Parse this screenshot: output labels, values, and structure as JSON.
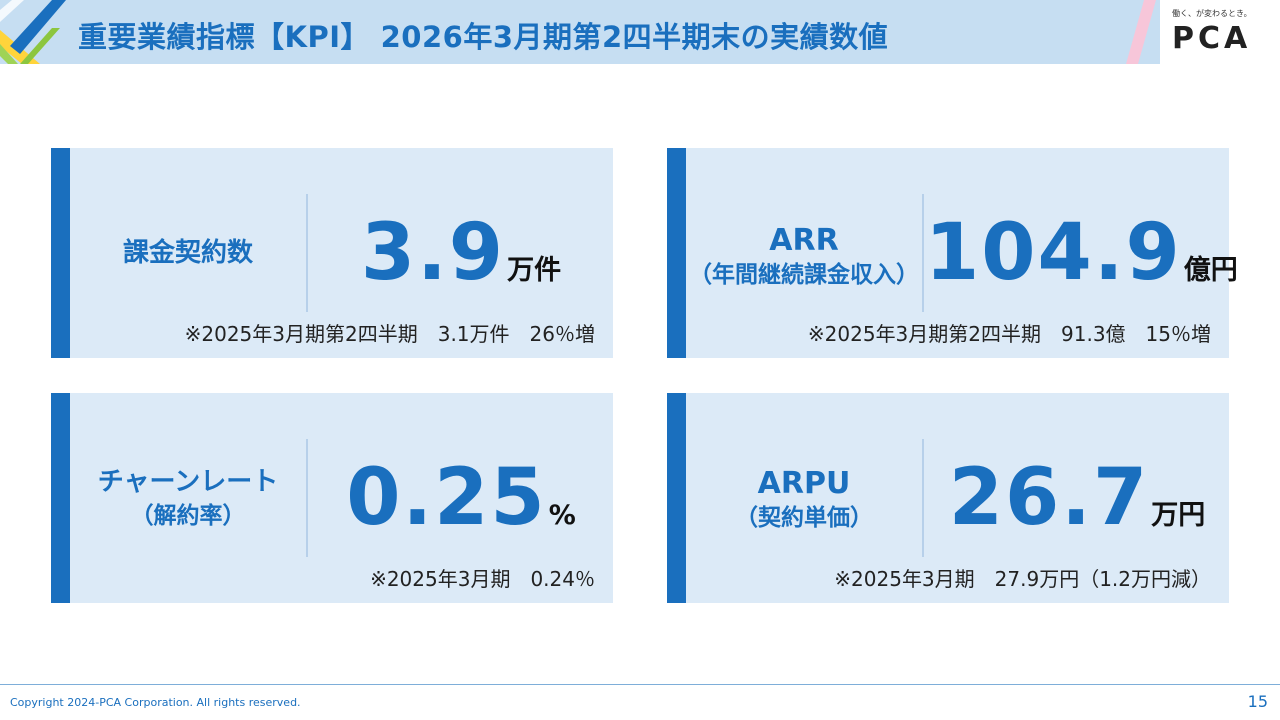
{
  "header": {
    "title": "重要業績指標【KPI】 2026年3月期第2四半期末の実績数値",
    "logo_tagline": "働く、が変わるとき。",
    "logo": "PCA"
  },
  "cards": [
    {
      "label": "課金契約数",
      "label_sub": "",
      "value": "3.9",
      "unit": "万件",
      "note": "※2025年3月期第2四半期　3.1万件　26％増"
    },
    {
      "label": "ARR",
      "label_sub": "（年間継続課金収入）",
      "value": "104.9",
      "unit": "億円",
      "note": "※2025年3月期第2四半期　91.3億　15％増"
    },
    {
      "label": "チャーンレート",
      "label_sub": "（解約率）",
      "value": "0.25",
      "unit": "%",
      "note": "※2025年3月期　0.24％"
    },
    {
      "label": "ARPU",
      "label_sub": "（契約単価）",
      "value": "26.7",
      "unit": "万円",
      "note": "※2025年3月期　27.9万円（1.2万円減）"
    }
  ],
  "footer": {
    "copyright": "Copyright 2024-PCA Corporation. All rights reserved.",
    "page_number": "15"
  },
  "colors": {
    "accent": "#1a6fbe",
    "card_bg": "#dceaf7",
    "header_bg": "#c6def2"
  }
}
